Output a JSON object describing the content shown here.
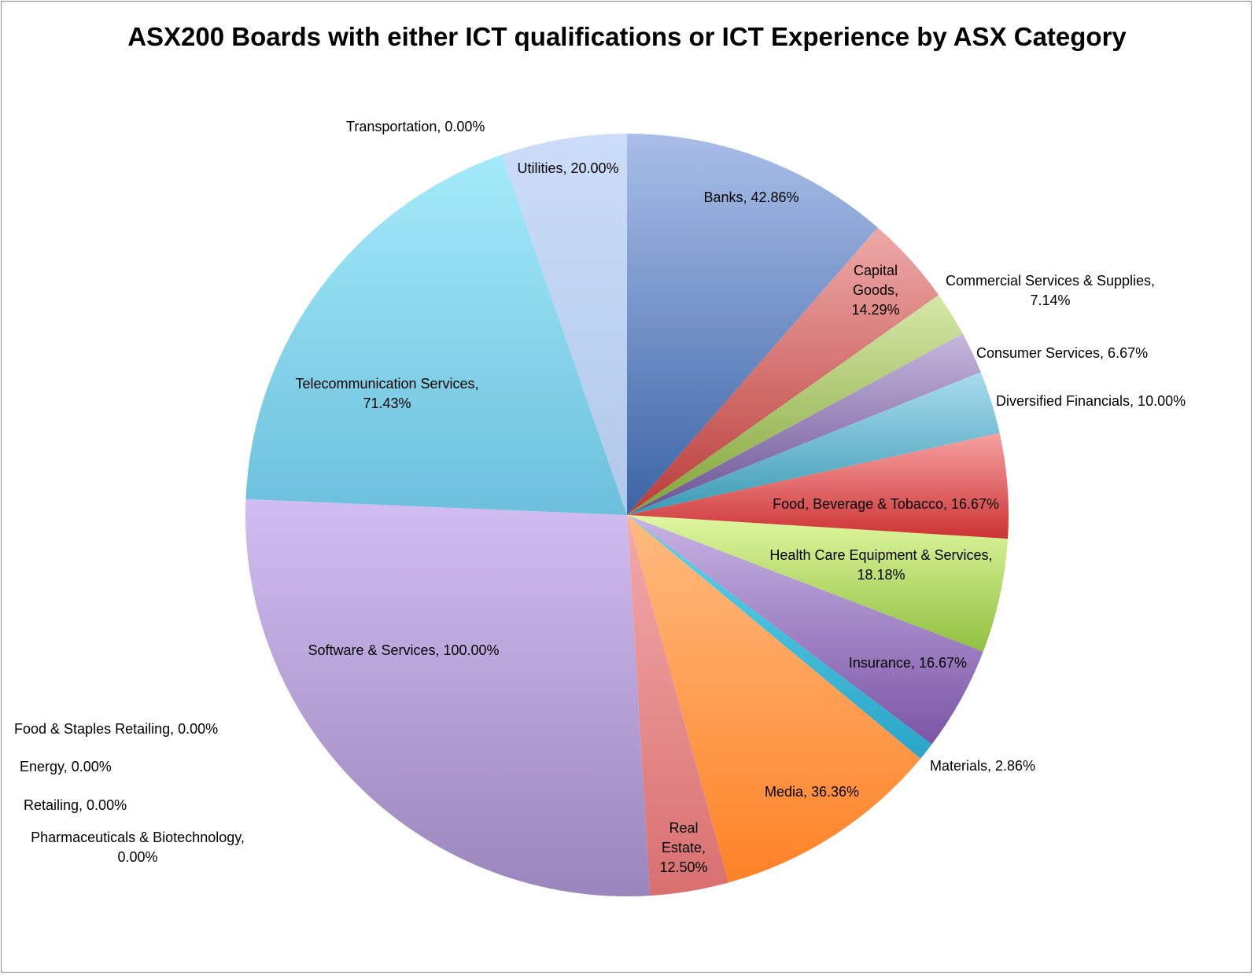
{
  "chart_data": {
    "type": "pie",
    "title": "ASX200 Boards with either ICT qualifications or ICT Experience by ASX Category",
    "slices": [
      {
        "name": "Banks",
        "value": 42.86,
        "label": "Banks, 42.86%",
        "color_light": "#a9bee8",
        "color_dark": "#3b64a5"
      },
      {
        "name": "Capital Goods",
        "value": 14.29,
        "label": "Capital Goods, 14.29%",
        "color_light": "#eeaaa8",
        "color_dark": "#b93c39"
      },
      {
        "name": "Commercial Services & Supplies",
        "value": 7.14,
        "label": "Commercial Services & Supplies, 7.14%",
        "color_light": "#d6e8a8",
        "color_dark": "#7fa337"
      },
      {
        "name": "Consumer Services",
        "value": 6.67,
        "label": "Consumer Services, 6.67%",
        "color_light": "#c6b6dc",
        "color_dark": "#6a5294"
      },
      {
        "name": "Diversified Financials",
        "value": 10.0,
        "label": "Diversified Financials, 10.00%",
        "color_light": "#a9dcee",
        "color_dark": "#3b9ab4"
      },
      {
        "name": "Food, Beverage & Tobacco",
        "value": 16.67,
        "label": "Food, Beverage & Tobacco, 16.67%",
        "color_light": "#f7a1a1",
        "color_dark": "#cc3333"
      },
      {
        "name": "Health Care Equipment & Services",
        "value": 18.18,
        "label": "Health Care Equipment & Services, 18.18%",
        "color_light": "#e0f7a0",
        "color_dark": "#90c040"
      },
      {
        "name": "Insurance",
        "value": 16.67,
        "label": "Insurance, 16.67%",
        "color_light": "#c8b4e4",
        "color_dark": "#7a55a5"
      },
      {
        "name": "Materials",
        "value": 2.86,
        "label": "Materials, 2.86%",
        "color_light": "#5fd3ea",
        "color_dark": "#2aa5c8"
      },
      {
        "name": "Media",
        "value": 36.36,
        "label": "Media, 36.36%",
        "color_light": "#ffbb80",
        "color_dark": "#ff8226"
      },
      {
        "name": "Real Estate",
        "value": 12.5,
        "label": "Real Estate, 12.50%",
        "color_light": "#f2aaaa",
        "color_dark": "#d97070"
      },
      {
        "name": "Software & Services",
        "value": 100.0,
        "label": "Software & Services, 100.00%",
        "color_light": "#d2bdf2",
        "color_dark": "#9a85bc"
      },
      {
        "name": "Telecommunication Services",
        "value": 71.43,
        "label": "Telecommunication Services, 71.43%",
        "color_light": "#a4eafa",
        "color_dark": "#6cc0dc"
      },
      {
        "name": "Utilities",
        "value": 20.0,
        "label": "Utilities, 20.00%",
        "color_light": "#ccddfa",
        "color_dark": "#b0c8e8"
      },
      {
        "name": "Transportation",
        "value": 0.0,
        "label": "Transportation, 0.00%"
      },
      {
        "name": "Food & Staples Retailing",
        "value": 0.0,
        "label": "Food & Staples Retailing, 0.00%"
      },
      {
        "name": "Energy",
        "value": 0.0,
        "label": "Energy, 0.00%"
      },
      {
        "name": "Retailing",
        "value": 0.0,
        "label": "Retailing, 0.00%"
      },
      {
        "name": "Pharmaceuticals & Biotechnology",
        "value": 0.0,
        "label": "Pharmaceuticals & Biotechnology, 0.00%"
      }
    ],
    "legend": "none",
    "start_angle": "12 o'clock",
    "direction": "clockwise"
  }
}
